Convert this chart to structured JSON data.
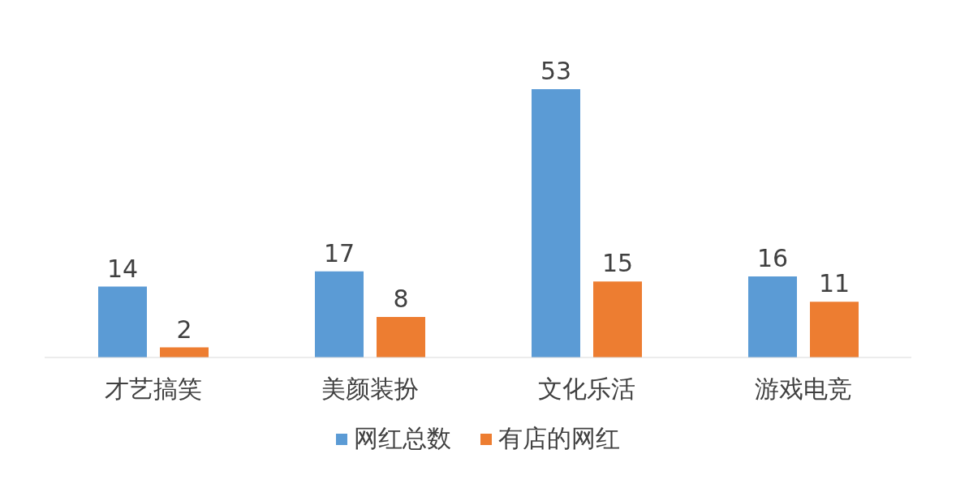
{
  "chart_data": {
    "type": "bar",
    "categories": [
      "才艺搞笑",
      "美颜装扮",
      "文化乐活",
      "游戏电竞"
    ],
    "series": [
      {
        "name": "网红总数",
        "color": "#5b9bd5",
        "values": [
          14,
          17,
          53,
          16
        ]
      },
      {
        "name": "有店的网红",
        "color": "#ed7d31",
        "values": [
          2,
          8,
          15,
          11
        ]
      }
    ],
    "data_labels": true,
    "legend": "bottom",
    "grid": false
  }
}
